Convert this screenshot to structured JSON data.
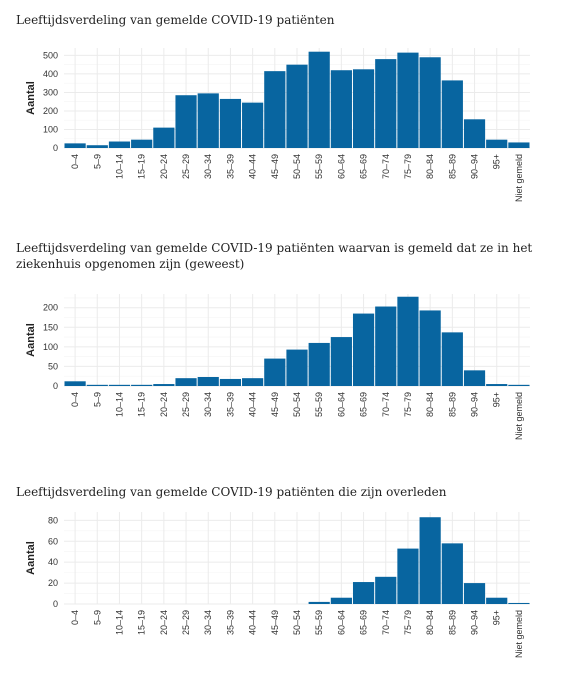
{
  "chart_data": [
    {
      "type": "bar",
      "title": "Leeftijdsverdeling van gemelde COVID-19 patiënten",
      "ylabel": "Aantal",
      "xlabel": "",
      "categories": [
        "0–4",
        "5–9",
        "10–14",
        "15–19",
        "20–24",
        "25–29",
        "30–34",
        "35–39",
        "40–44",
        "45–49",
        "50–54",
        "55–59",
        "60–64",
        "65–69",
        "70–74",
        "75–79",
        "80–84",
        "85–89",
        "90–94",
        "95+",
        "Niet gemeld"
      ],
      "values": [
        25,
        15,
        35,
        45,
        110,
        285,
        295,
        265,
        245,
        415,
        450,
        520,
        420,
        425,
        480,
        515,
        490,
        365,
        155,
        45,
        30
      ],
      "ylim": [
        0,
        540
      ],
      "yticks": [
        0,
        100,
        200,
        300,
        400,
        500
      ],
      "grid": true,
      "color": "#0865a0"
    },
    {
      "type": "bar",
      "title": "Leeftijdsverdeling van gemelde COVID-19 patiënten waarvan is gemeld dat ze in het ziekenhuis opgenomen zijn (geweest)",
      "ylabel": "Aantal",
      "xlabel": "",
      "categories": [
        "0–4",
        "5–9",
        "10–14",
        "15–19",
        "20–24",
        "25–29",
        "30–34",
        "35–39",
        "40–44",
        "45–49",
        "50–54",
        "55–59",
        "60–64",
        "65–69",
        "70–74",
        "75–79",
        "80–84",
        "85–89",
        "90–94",
        "95+",
        "Niet gemeld"
      ],
      "values": [
        12,
        3,
        3,
        3,
        5,
        20,
        23,
        18,
        20,
        70,
        93,
        110,
        125,
        185,
        203,
        228,
        193,
        137,
        40,
        5,
        3
      ],
      "ylim": [
        0,
        235
      ],
      "yticks": [
        0,
        50,
        100,
        150,
        200
      ],
      "grid": true,
      "color": "#0865a0"
    },
    {
      "type": "bar",
      "title": "Leeftijdsverdeling van gemelde COVID-19 patiënten die zijn overleden",
      "ylabel": "Aantal",
      "xlabel": "",
      "categories": [
        "0–4",
        "5–9",
        "10–14",
        "15–19",
        "20–24",
        "25–29",
        "30–34",
        "35–39",
        "40–44",
        "45–49",
        "50–54",
        "55–59",
        "60–64",
        "65–69",
        "70–74",
        "75–79",
        "80–84",
        "85–89",
        "90–94",
        "95+",
        "Niet gemeld"
      ],
      "values": [
        0,
        0,
        0,
        0,
        0,
        0,
        0,
        0,
        0,
        0,
        0,
        2,
        6,
        21,
        26,
        53,
        83,
        58,
        20,
        6,
        1
      ],
      "ylim": [
        0,
        88
      ],
      "yticks": [
        0,
        20,
        40,
        60,
        80
      ],
      "grid": true,
      "color": "#0865a0"
    }
  ]
}
